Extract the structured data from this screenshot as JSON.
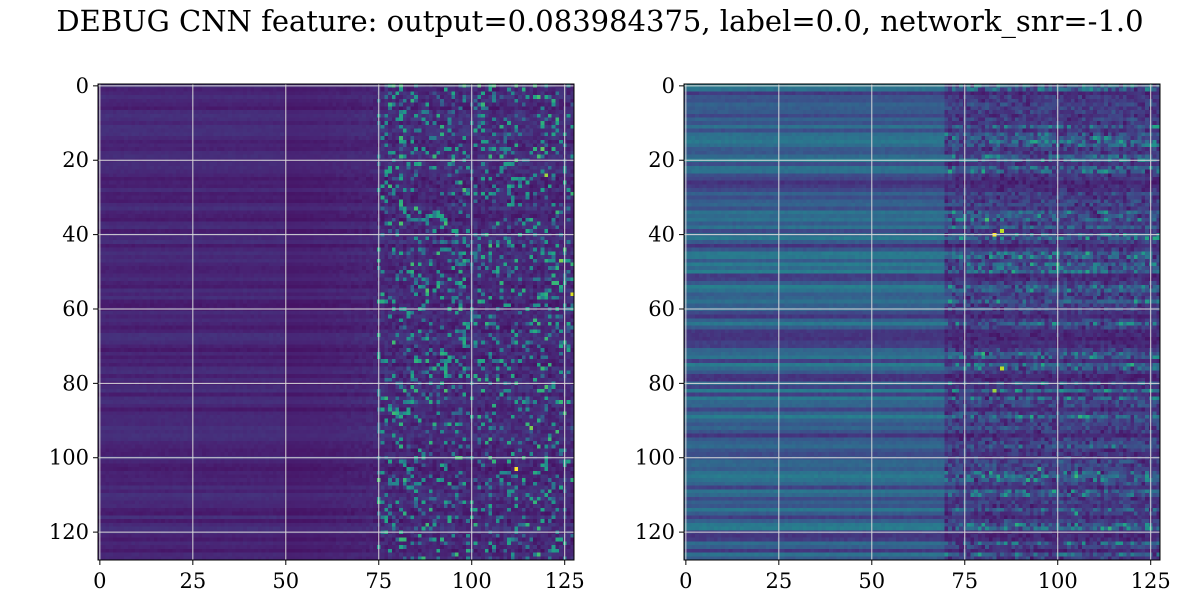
{
  "figure": {
    "suptitle": "DEBUG CNN feature: output=0.083984375, label=0.0, network_snr=-1.0"
  },
  "chart_data": [
    {
      "type": "heatmap",
      "panel": "left",
      "title": "",
      "xlabel": "",
      "ylabel": "",
      "colormap": "viridis",
      "rows": 128,
      "cols": 128,
      "xlim": [
        -0.5,
        127.5
      ],
      "ylim": [
        127.5,
        -0.5
      ],
      "xticks": [
        0,
        25,
        50,
        75,
        100,
        125
      ],
      "yticks": [
        0,
        20,
        40,
        60,
        80,
        100,
        120
      ],
      "grid": true,
      "description_of_values": "columns 0-75 uniformly low (~0.05-0.15), columns 75-128 sparse noisy higher values (0.1-0.9)",
      "hotspots": [
        {
          "row": 103,
          "col": 112,
          "value": 1.0
        },
        {
          "row": 56,
          "col": 127,
          "value": 0.95
        },
        {
          "row": 24,
          "col": 120,
          "value": 0.85
        },
        {
          "row": 47,
          "col": 124,
          "value": 0.8
        },
        {
          "row": 92,
          "col": 116,
          "value": 0.8
        },
        {
          "row": 17,
          "col": 119,
          "value": 0.75
        },
        {
          "row": 3,
          "col": 118,
          "value": 0.7
        },
        {
          "row": 43,
          "col": 105,
          "value": 0.7
        },
        {
          "row": 126,
          "col": 118,
          "value": 0.7
        }
      ]
    },
    {
      "type": "heatmap",
      "panel": "right",
      "title": "",
      "xlabel": "",
      "ylabel": "",
      "colormap": "viridis",
      "rows": 128,
      "cols": 128,
      "xlim": [
        -0.5,
        127.5
      ],
      "ylim": [
        127.5,
        -0.5
      ],
      "xticks": [
        0,
        25,
        50,
        75,
        100,
        125
      ],
      "yticks": [
        0,
        20,
        40,
        60,
        80,
        100,
        120
      ],
      "grid": true,
      "description_of_values": "horizontal row-banded structure ~0.15-0.35 on left, brighter streaks for columns 75-128",
      "hotspots": [
        {
          "row": 40,
          "col": 83,
          "value": 1.0
        },
        {
          "row": 39,
          "col": 85,
          "value": 0.9
        },
        {
          "row": 76,
          "col": 85,
          "value": 0.9
        },
        {
          "row": 82,
          "col": 83,
          "value": 0.85
        },
        {
          "row": 36,
          "col": 81,
          "value": 0.7
        },
        {
          "row": 103,
          "col": 95,
          "value": 0.65
        },
        {
          "row": 115,
          "col": 105,
          "value": 0.6
        },
        {
          "row": 72,
          "col": 80,
          "value": 0.65
        }
      ]
    }
  ]
}
